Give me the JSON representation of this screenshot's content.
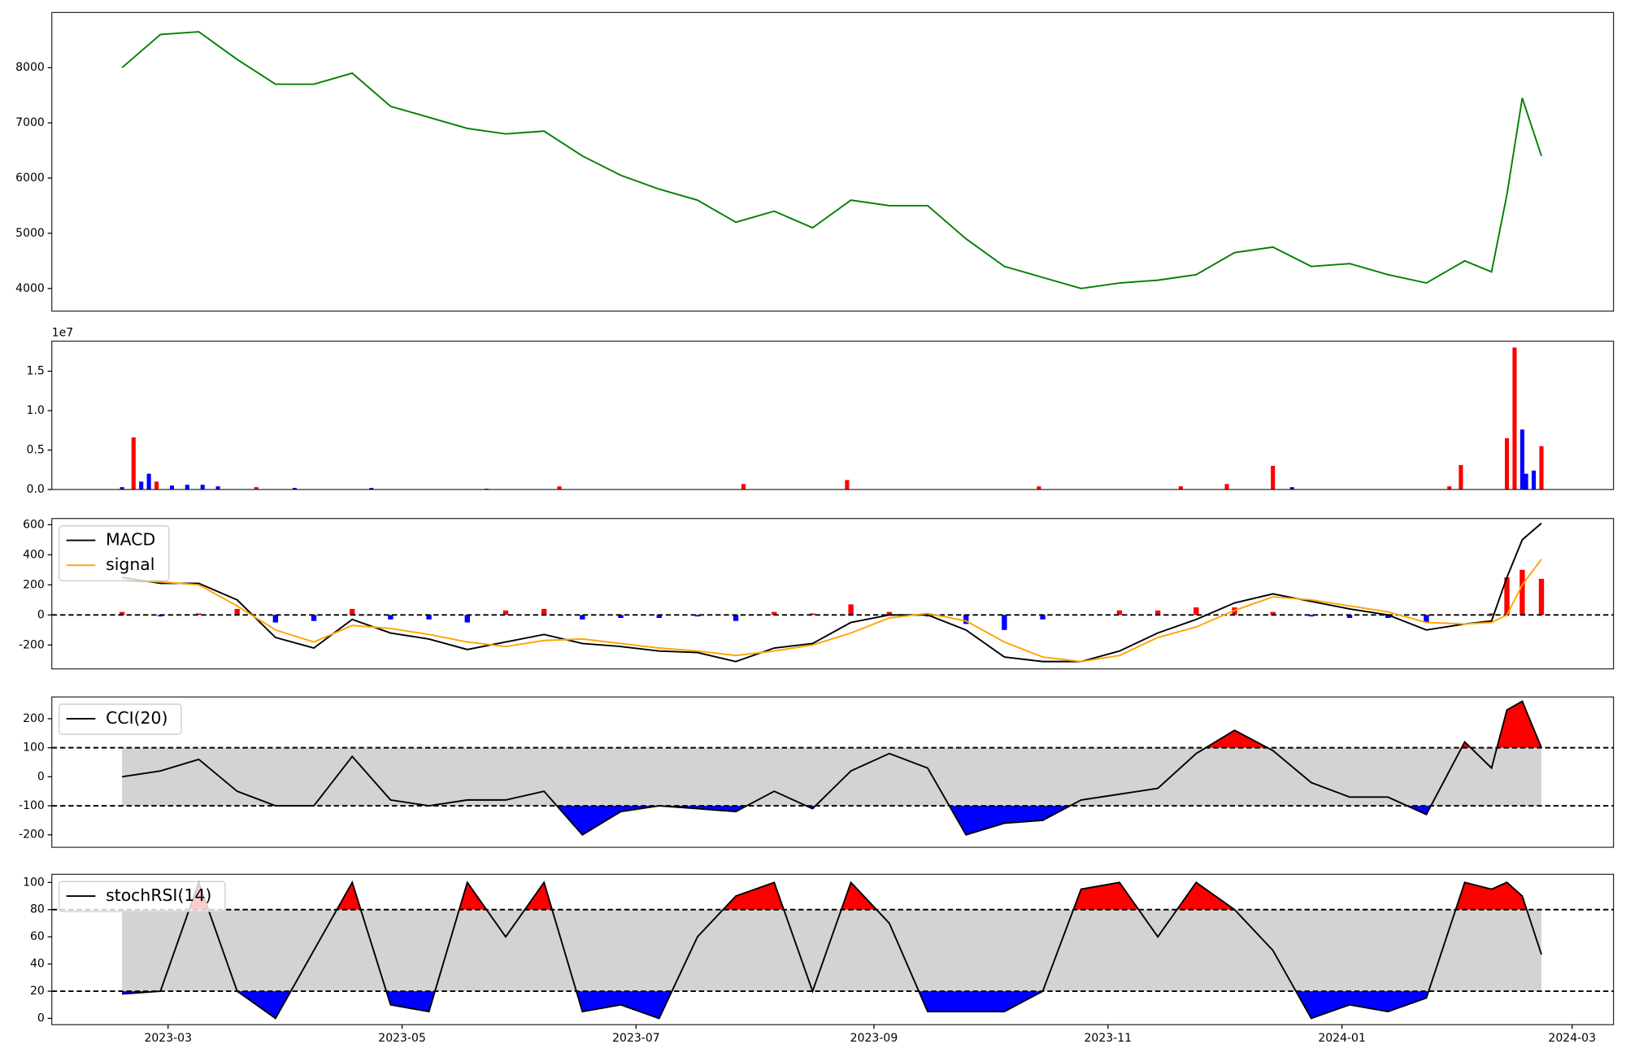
{
  "chart_data": [
    {
      "type": "line",
      "x": [
        19405,
        19415,
        19425,
        19435,
        19445,
        19455,
        19465,
        19475,
        19485,
        19495,
        19505,
        19515,
        19525,
        19535,
        19545,
        19555,
        19565,
        19575,
        19585,
        19595,
        19605,
        19615,
        19625,
        19635,
        19645,
        19655,
        19665,
        19675,
        19685,
        19695,
        19705,
        19715,
        19725,
        19735,
        19745,
        19755,
        19762,
        19766,
        19770,
        19775
      ],
      "series": [
        {
          "color": "green",
          "values": [
            8000,
            8600,
            8650,
            8150,
            7700,
            7700,
            7900,
            7300,
            7100,
            6900,
            6800,
            6850,
            6400,
            6050,
            5800,
            5600,
            5200,
            5400,
            5100,
            5600,
            5500,
            5500,
            4900,
            4400,
            4200,
            4000,
            4100,
            4150,
            4250,
            4650,
            4750,
            4400,
            4450,
            4250,
            4100,
            4500,
            4300,
            5700,
            7450,
            6400
          ]
        }
      ],
      "xlim": [
        19386.7,
        19793.8
      ],
      "ylim": [
        3590,
        9000
      ],
      "yticks": [
        4000,
        5000,
        6000,
        7000,
        8000
      ]
    },
    {
      "type": "bar",
      "offset_label": "1e7",
      "x": [
        19405,
        19408,
        19410,
        19412,
        19414,
        19418,
        19422,
        19426,
        19430,
        19440,
        19450,
        19470,
        19500,
        19519,
        19567,
        19594,
        19644,
        19681,
        19693,
        19705,
        19710,
        19751,
        19754,
        19766,
        19768,
        19770,
        19771,
        19773,
        19775
      ],
      "values": [
        300000,
        6600000,
        1000000,
        2000000,
        1000000,
        500000,
        600000,
        600000,
        400000,
        300000,
        200000,
        200000,
        100000,
        400000,
        700000,
        1200000,
        400000,
        400000,
        700000,
        3000000,
        300000,
        400000,
        3100000,
        6500000,
        18000000,
        7600000,
        2000000,
        2400000,
        5500000
      ],
      "colors": [
        "blue",
        "red",
        "blue",
        "blue",
        "red",
        "blue",
        "blue",
        "blue",
        "blue",
        "red",
        "blue",
        "blue",
        "blue",
        "red",
        "red",
        "red",
        "red",
        "red",
        "red",
        "red",
        "blue",
        "red",
        "red",
        "red",
        "red",
        "blue",
        "blue",
        "blue",
        "red"
      ],
      "xlim": [
        19386.7,
        19793.8
      ],
      "ylim": [
        0,
        18800000
      ],
      "yticks": [
        {
          "value": 0,
          "label": "0.0"
        },
        {
          "value": 5000000,
          "label": "0.5"
        },
        {
          "value": 10000000,
          "label": "1.0"
        },
        {
          "value": 15000000,
          "label": "1.5"
        }
      ]
    },
    {
      "type": "macd",
      "x": [
        19405,
        19415,
        19425,
        19435,
        19445,
        19455,
        19465,
        19475,
        19485,
        19495,
        19505,
        19515,
        19525,
        19535,
        19545,
        19555,
        19565,
        19575,
        19585,
        19595,
        19605,
        19615,
        19625,
        19635,
        19645,
        19655,
        19665,
        19675,
        19685,
        19695,
        19705,
        19715,
        19725,
        19735,
        19745,
        19755,
        19762,
        19766,
        19770,
        19775
      ],
      "series": [
        {
          "name": "MACD",
          "color": "black",
          "values": [
            250,
            210,
            210,
            100,
            -150,
            -220,
            -30,
            -120,
            -160,
            -230,
            -180,
            -130,
            -190,
            -210,
            -240,
            -250,
            -310,
            -220,
            -190,
            -50,
            0,
            0,
            -100,
            -280,
            -310,
            -310,
            -240,
            -120,
            -30,
            80,
            140,
            90,
            40,
            0,
            -100,
            -60,
            -40,
            250,
            500,
            610
          ]
        },
        {
          "name": "signal",
          "color": "orange",
          "values": [
            230,
            220,
            200,
            60,
            -100,
            -180,
            -70,
            -90,
            -130,
            -180,
            -210,
            -170,
            -160,
            -190,
            -220,
            -240,
            -270,
            -240,
            -200,
            -120,
            -20,
            10,
            -40,
            -180,
            -280,
            -310,
            -270,
            -150,
            -80,
            30,
            120,
            100,
            60,
            20,
            -50,
            -60,
            -50,
            0,
            200,
            370
          ]
        }
      ],
      "histogram": {
        "up_color": "red",
        "down_color": "blue",
        "values": [
          20,
          -10,
          10,
          40,
          -50,
          -40,
          40,
          -30,
          -30,
          -50,
          30,
          40,
          -30,
          -20,
          -20,
          -10,
          -40,
          20,
          10,
          70,
          20,
          -10,
          -60,
          -100,
          -30,
          0,
          30,
          30,
          50,
          50,
          20,
          -10,
          -20,
          -20,
          -50,
          0,
          10,
          250,
          300,
          240
        ]
      },
      "hlines": [
        0
      ],
      "xlim": [
        19386.7,
        19793.8
      ],
      "ylim": [
        -359,
        641
      ],
      "yticks": [
        -200,
        0,
        200,
        400,
        600
      ],
      "legend": "upper left"
    },
    {
      "type": "oscillator",
      "x": [
        19405,
        19415,
        19425,
        19435,
        19445,
        19455,
        19465,
        19475,
        19485,
        19495,
        19505,
        19515,
        19525,
        19535,
        19545,
        19555,
        19565,
        19575,
        19585,
        19595,
        19605,
        19615,
        19625,
        19635,
        19645,
        19655,
        19665,
        19675,
        19685,
        19695,
        19705,
        19715,
        19725,
        19735,
        19745,
        19755,
        19762,
        19766,
        19770,
        19775
      ],
      "series": [
        {
          "name": "CCI(20)",
          "color": "black",
          "values": [
            0,
            20,
            60,
            -50,
            -100,
            -100,
            70,
            -80,
            -100,
            -80,
            -80,
            -50,
            -200,
            -120,
            -100,
            -110,
            -120,
            -50,
            -110,
            20,
            80,
            30,
            -200,
            -160,
            -150,
            -80,
            -60,
            -40,
            80,
            160,
            90,
            -20,
            -70,
            -70,
            -130,
            120,
            30,
            230,
            260,
            100
          ]
        }
      ],
      "hlines": [
        -100,
        100
      ],
      "band_color": "lightgray",
      "upper_color": "red",
      "lower_color": "blue",
      "xlim": [
        19386.7,
        19793.8
      ],
      "ylim": [
        -243,
        275
      ],
      "yticks": [
        -200,
        -100,
        0,
        100,
        200
      ],
      "legend": "upper left"
    },
    {
      "type": "oscillator",
      "x": [
        19405,
        19415,
        19425,
        19435,
        19445,
        19455,
        19465,
        19475,
        19485,
        19495,
        19505,
        19515,
        19525,
        19535,
        19545,
        19555,
        19565,
        19575,
        19585,
        19595,
        19605,
        19615,
        19625,
        19635,
        19645,
        19655,
        19665,
        19675,
        19685,
        19695,
        19705,
        19715,
        19725,
        19735,
        19745,
        19755,
        19762,
        19766,
        19770,
        19775
      ],
      "series": [
        {
          "name": "stochRSI(14)",
          "color": "black",
          "values": [
            18,
            20,
            100,
            20,
            0,
            50,
            100,
            10,
            5,
            100,
            60,
            100,
            5,
            10,
            0,
            60,
            90,
            100,
            20,
            100,
            70,
            5,
            5,
            5,
            20,
            95,
            100,
            60,
            100,
            80,
            50,
            0,
            10,
            5,
            15,
            100,
            95,
            100,
            90,
            47
          ]
        }
      ],
      "hlines": [
        20,
        80
      ],
      "band_color": "lightgray",
      "upper_color": "red",
      "lower_color": "blue",
      "xlim": [
        19386.7,
        19793.8
      ],
      "ylim": [
        -4.6,
        106
      ],
      "yticks": [
        0,
        20,
        40,
        60,
        80,
        100
      ],
      "legend": "upper left",
      "xticks": [
        {
          "value": 19417,
          "label": "2023-03"
        },
        {
          "value": 19478,
          "label": "2023-05"
        },
        {
          "value": 19539,
          "label": "2023-07"
        },
        {
          "value": 19601,
          "label": "2023-09"
        },
        {
          "value": 19662,
          "label": "2023-11"
        },
        {
          "value": 19723,
          "label": "2024-01"
        },
        {
          "value": 19783,
          "label": "2024-03"
        }
      ]
    }
  ]
}
